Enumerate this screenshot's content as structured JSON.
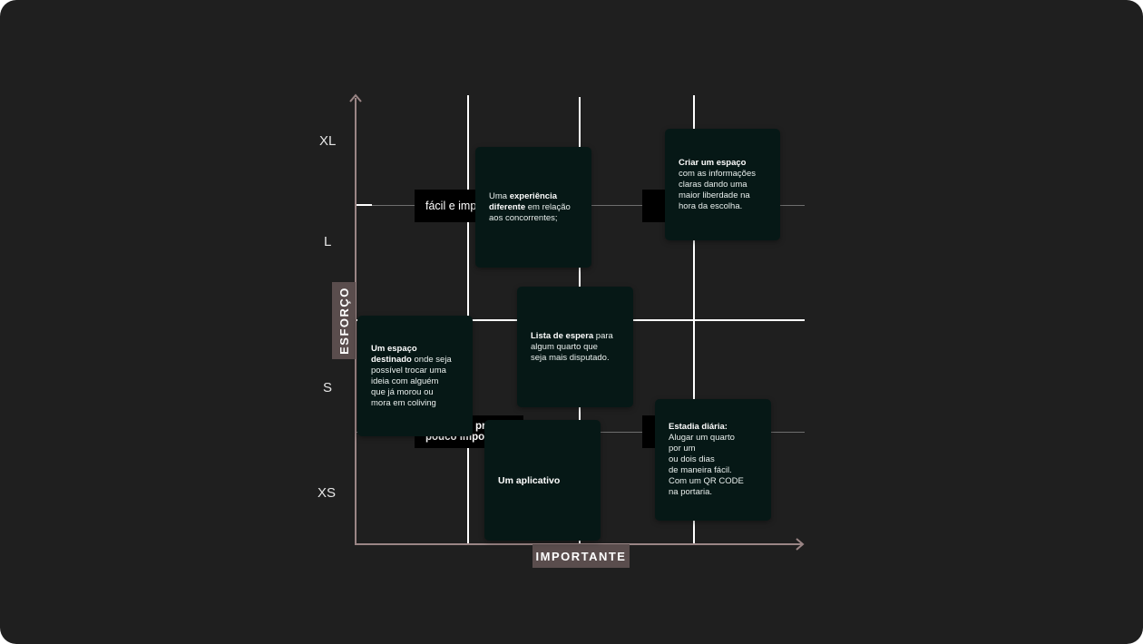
{
  "axes": {
    "x_title": "IMPORTANTE",
    "y_title": "ESFORÇO",
    "y_ticks": [
      "XL",
      "L",
      "S",
      "XS"
    ]
  },
  "tags": {
    "top_left": "fácil e imp",
    "bottom_left_line1": "pre",
    "bottom_left_line2": "pouco impor"
  },
  "cards": {
    "experiencia": {
      "pre": "Uma ",
      "bold1": "experiência",
      "bold2": "diferente",
      "post": " em relação",
      "line3": "aos concorrentes;"
    },
    "criar": {
      "bold": "Criar um espaço",
      "lines": [
        "com as informações",
        "claras dando uma",
        "maior liberdade na",
        "hora da escolha."
      ]
    },
    "lista": {
      "bold": "Lista de espera",
      "post": " para",
      "lines": [
        "algum quarto que",
        "seja mais disputado."
      ]
    },
    "espaco": {
      "bold1": "Um espaço",
      "bold2": "destinado",
      "post": " onde seja",
      "lines": [
        "possível trocar uma",
        "ideia com alguém",
        "que já morou ou",
        "mora em coliving"
      ]
    },
    "aplicativo": {
      "bold": "Um aplicativo"
    },
    "estadia": {
      "bold": "Estadia diária:",
      "lines": [
        "Alugar um quarto",
        "por um",
        "ou dois dias",
        "de maneira fácil.",
        "Com um QR CODE",
        "na portaria."
      ]
    }
  },
  "colors": {
    "background": "#1f1f1f",
    "card": "#061816",
    "axis": "#9a8585",
    "axis_label_bg": "#5a4d4d"
  }
}
